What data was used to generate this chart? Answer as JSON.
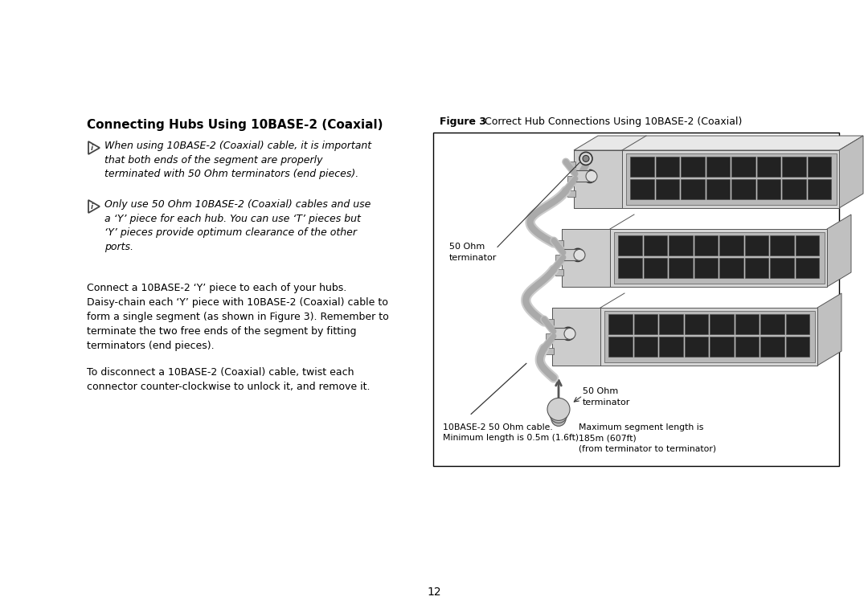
{
  "bg_color": "#ffffff",
  "page_number": "12",
  "left_heading": "Connecting Hubs Using 10BASE-2 (Coaxial)",
  "figure_label": "Figure 3",
  "figure_title": "  Correct Hub Connections Using 10BASE-2 (Coaxial)",
  "note1_text": "When using 10BASE-2 (Coaxial) cable, it is important\nthat both ends of the segment are properly\nterminated with 50 Ohm terminators (end pieces).",
  "note2_text": "Only use 50 Ohm 10BASE-2 (Coaxial) cables and use\na ‘Y’ piece for each hub. You can use ‘T’ pieces but\n‘Y’ pieces provide optimum clearance of the other\nports.",
  "para1_text": "Connect a 10BASE-2 ‘Y’ piece to each of your hubs.\nDaisy-chain each ‘Y’ piece with 10BASE-2 (Coaxial) cable to\nform a single segment (as shown in Figure 3). Remember to\nterminate the two free ends of the segment by fitting\nterminators (end pieces).",
  "para2_text": "To disconnect a 10BASE-2 (Coaxial) cable, twist each\nconnector counter-clockwise to unlock it, and remove it.",
  "label_50ohm_top": "50 Ohm\nterminator",
  "label_50ohm_bottom": "50 Ohm\nterminator",
  "label_cable": "10BASE-2 50 Ohm cable.\nMinimum length is 0.5m (1.6ft)",
  "label_max_seg": "Maximum segment length is\n185m (607ft)\n(from terminator to terminator)",
  "text_color": "#000000",
  "border_color": "#000000"
}
